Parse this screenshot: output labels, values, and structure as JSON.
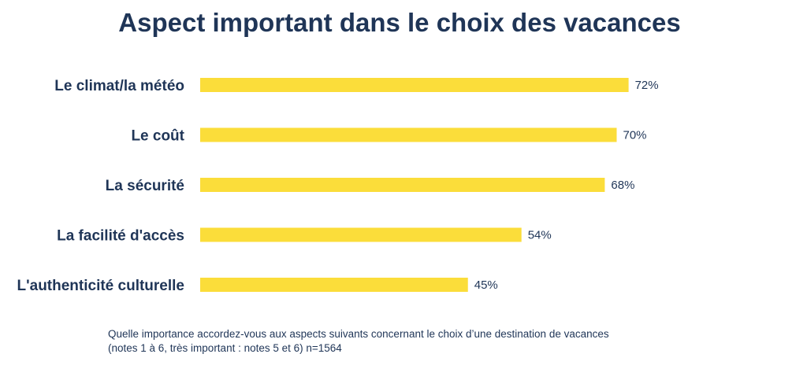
{
  "chart_data": {
    "type": "bar",
    "orientation": "horizontal",
    "title": "Aspect important dans le choix des vacances",
    "categories": [
      "Le climat/la météo",
      "Le coût",
      "La sécurité",
      "La facilité d'accès",
      "L'authenticité culturelle"
    ],
    "values": [
      72,
      70,
      68,
      54,
      45
    ],
    "value_labels": [
      "72%",
      "70%",
      "68%",
      "54%",
      "45%"
    ],
    "unit": "%",
    "xlim": [
      0,
      100
    ],
    "grid": false,
    "bar_color": "#fbdd3a",
    "text_color": "#1f3557"
  },
  "footnote": {
    "line1": "Quelle importance accordez-vous aux aspects suivants concernant le choix d’une destination de vacances",
    "line2": "(notes 1 à 6, très important : notes 5 et 6) n=1564"
  }
}
